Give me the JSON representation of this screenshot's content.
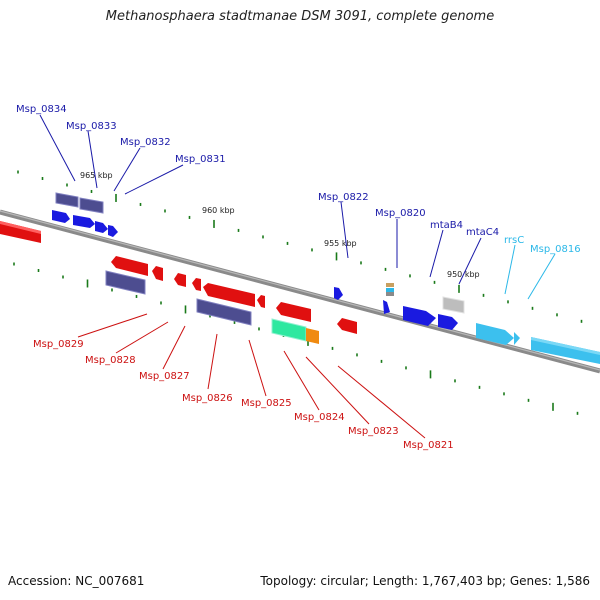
{
  "title": "Methanosphaera stadtmanae DSM 3091, complete genome",
  "footer": {
    "accession_label": "Accession: NC_007681",
    "summary": "Topology: circular; Length: 1,767,403 bp; Genes: 1,586"
  },
  "colors": {
    "top_strand_label": "#1a1aa8",
    "bottom_strand_label": "#cc1111",
    "rna_label": "#2bb8e8",
    "backbone": "#7a7a7a",
    "tick": "#1a7a1a"
  },
  "scale_labels": [
    "965 kbp",
    "960 kbp",
    "955 kbp",
    "950 kbp"
  ],
  "gene_labels_top": [
    "Msp_0834",
    "Msp_0833",
    "Msp_0832",
    "Msp_0831",
    "Msp_0822",
    "Msp_0820",
    "mtaB4",
    "mtaC4"
  ],
  "rna_labels": [
    "rrsC",
    "Msp_0816"
  ],
  "gene_labels_bottom": [
    "Msp_0829",
    "Msp_0828",
    "Msp_0827",
    "Msp_0826",
    "Msp_0825",
    "Msp_0824",
    "Msp_0823",
    "Msp_0821"
  ]
}
